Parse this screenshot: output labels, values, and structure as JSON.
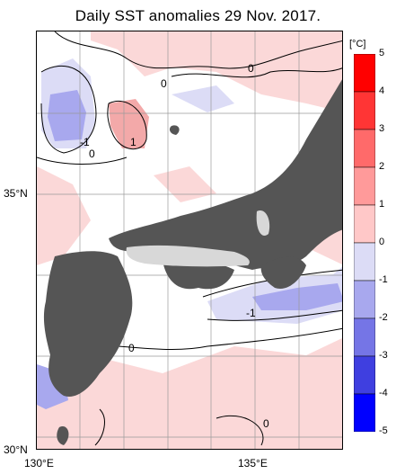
{
  "title": "Daily SST anomalies 29 Nov. 2017.",
  "axes": {
    "lat_labels": [
      "35°N",
      "30°N"
    ],
    "lon_labels": [
      "130°E",
      "135°E"
    ]
  },
  "colorbar": {
    "unit": "[°C]",
    "ticks": [
      "5",
      "4",
      "3",
      "2",
      "1",
      "0",
      "-1",
      "-2",
      "-3",
      "-4",
      "-5"
    ],
    "colors": [
      "#ff0000",
      "#ff3535",
      "#ff6a6a",
      "#ff9a9a",
      "#ffc8c8",
      "#ffffff",
      "#dcdcf6",
      "#a8a8ee",
      "#7575e6",
      "#3f3fe0",
      "#0000ff"
    ]
  },
  "contour_labels": [
    "0",
    "0",
    "-1",
    "0",
    "1",
    "-1",
    "0",
    "0"
  ],
  "colors": {
    "land": "#555555",
    "lake": "#d8d8d8",
    "warm": "#fbd8d8",
    "cool": "#d9d9f3",
    "grid": "#9a9a9a"
  }
}
